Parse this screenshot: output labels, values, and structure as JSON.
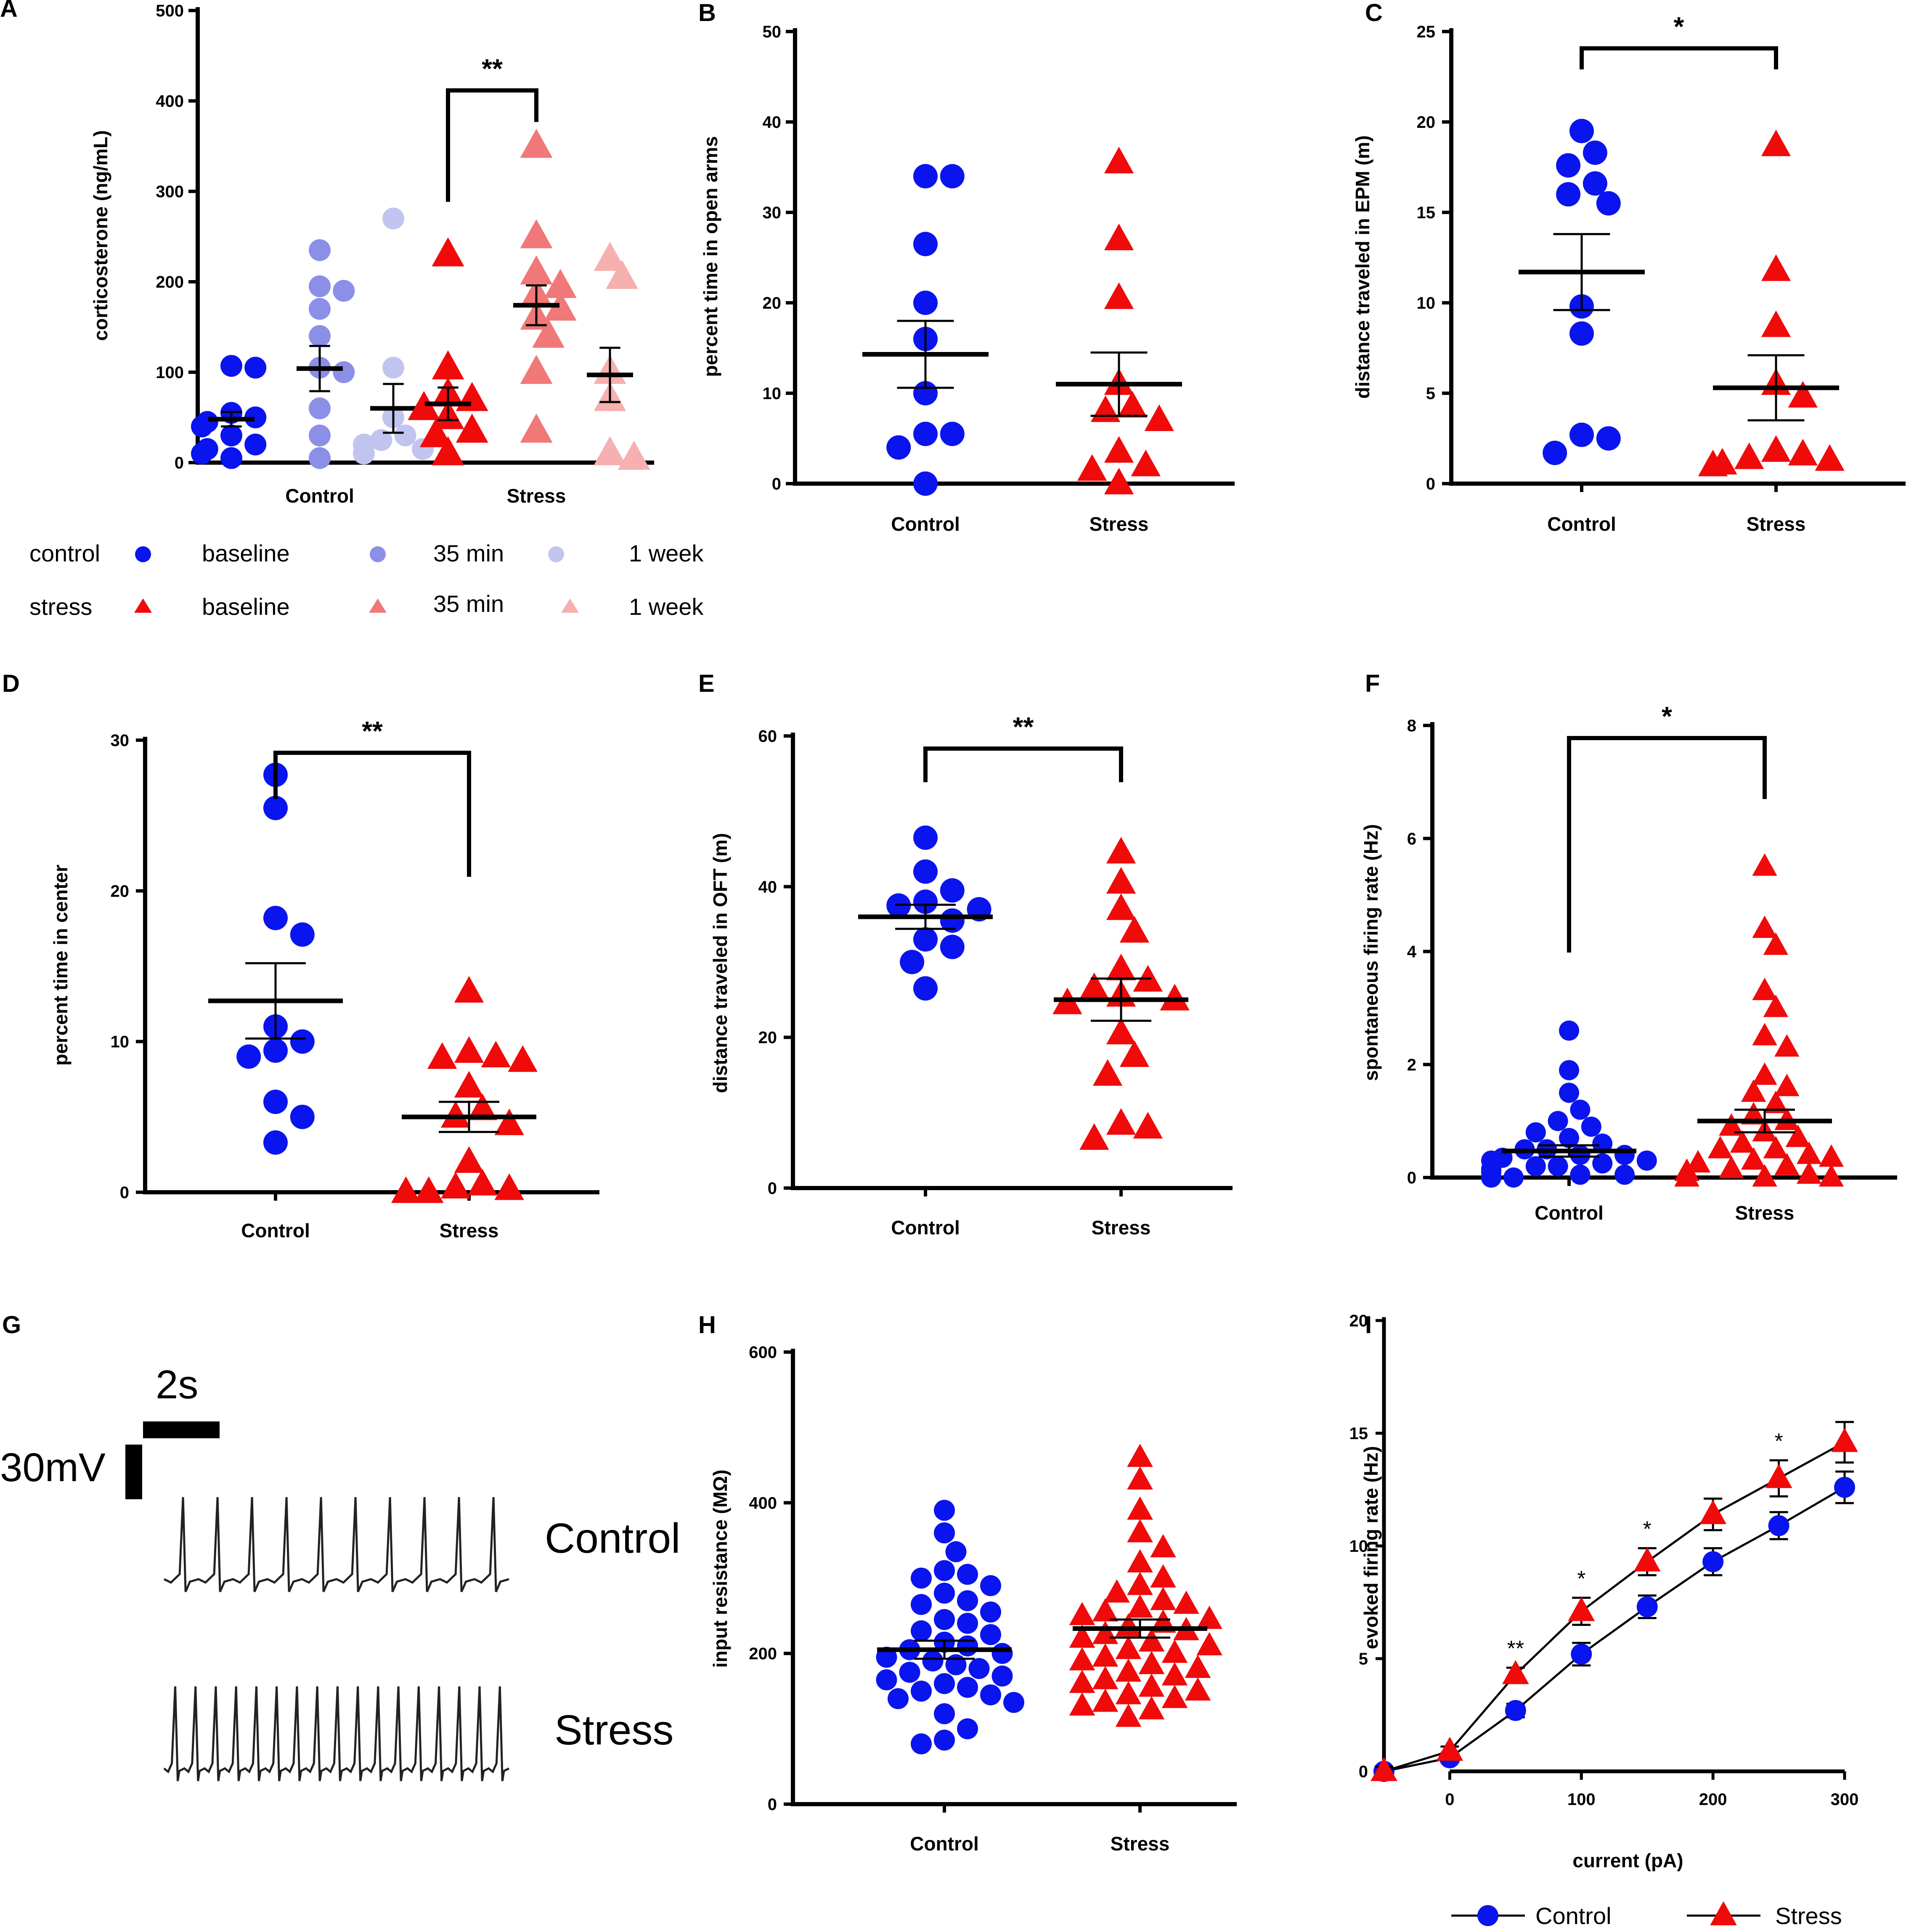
{
  "colors": {
    "control": "#0a14ee",
    "stress": "#f00a0a",
    "control_35": "#8b8fe8",
    "control_1w": "#c2c4f0",
    "stress_35": "#f07878",
    "stress_1w": "#f6b0b0",
    "axis": "#000000",
    "trace": "#222222"
  },
  "legend_a": {
    "control_label": "control",
    "stress_label": "stress",
    "baseline": "baseline",
    "min35": "35 min",
    "week1": "1 week"
  },
  "trace_panel": {
    "letter": "G",
    "time_scale": "2s",
    "voltage_scale": "30mV",
    "control_label": "Control",
    "stress_label": "Stress"
  },
  "chart_data": [
    {
      "panel": "A",
      "type": "scatter",
      "ylabel": "corticosterone (ng/mL)",
      "ylim": [
        0,
        500
      ],
      "yticks": [
        0,
        100,
        200,
        300,
        400,
        500
      ],
      "categories": [
        "Control",
        "Stress"
      ],
      "series": [
        {
          "name": "control baseline",
          "group": 0,
          "color_key": "control",
          "marker": "circle",
          "values": [
            107,
            105,
            55,
            50,
            45,
            40,
            30,
            20,
            15,
            10,
            5
          ],
          "mean": 48,
          "sem": 8
        },
        {
          "name": "control 35 min",
          "group": 0,
          "color_key": "control_35",
          "marker": "circle",
          "values": [
            235,
            195,
            190,
            170,
            140,
            105,
            100,
            60,
            30,
            5
          ],
          "mean": 104,
          "sem": 25
        },
        {
          "name": "control 1 week",
          "group": 0,
          "color_key": "control_1w",
          "marker": "circle",
          "values": [
            270,
            105,
            50,
            30,
            25,
            20,
            15,
            10
          ],
          "mean": 60,
          "sem": 27
        },
        {
          "name": "stress baseline",
          "group": 1,
          "color_key": "stress",
          "marker": "triangle",
          "values": [
            230,
            105,
            75,
            70,
            60,
            50,
            35,
            30,
            10
          ],
          "mean": 65,
          "sem": 18
        },
        {
          "name": "stress 35 min",
          "group": 1,
          "color_key": "stress_35",
          "marker": "triangle",
          "values": [
            350,
            250,
            210,
            195,
            185,
            170,
            160,
            140,
            100,
            35
          ],
          "mean": 174,
          "sem": 22
        },
        {
          "name": "stress 1 week",
          "group": 1,
          "color_key": "stress_1w",
          "marker": "triangle",
          "values": [
            225,
            205,
            100,
            70,
            10,
            5
          ],
          "mean": 97,
          "sem": 30
        }
      ],
      "significance": [
        {
          "label": "**",
          "from": 3,
          "to": 4
        }
      ]
    },
    {
      "panel": "B",
      "type": "scatter",
      "ylabel": "percent time in open arms",
      "ylim": [
        0,
        50
      ],
      "yticks": [
        0,
        10,
        20,
        30,
        40,
        50
      ],
      "categories": [
        "Control",
        "Stress"
      ],
      "series": [
        {
          "name": "Control",
          "group": 0,
          "color_key": "control",
          "marker": "circle",
          "values": [
            34,
            34,
            26.5,
            20,
            16,
            10,
            5.5,
            5.5,
            4,
            0
          ],
          "mean": 14.3,
          "sem": 3.7
        },
        {
          "name": "Stress",
          "group": 1,
          "color_key": "stress",
          "marker": "triangle",
          "values": [
            35.5,
            27,
            20.5,
            11,
            8.5,
            8,
            7,
            3.5,
            2,
            1.5,
            0
          ],
          "mean": 11,
          "sem": 3.5
        }
      ],
      "significance": []
    },
    {
      "panel": "C",
      "type": "scatter",
      "ylabel": "distance traveled in EPM (m)",
      "ylim": [
        0,
        25
      ],
      "yticks": [
        0,
        5,
        10,
        15,
        20,
        25
      ],
      "categories": [
        "Control",
        "Stress"
      ],
      "series": [
        {
          "name": "Control",
          "group": 0,
          "color_key": "control",
          "marker": "circle",
          "values": [
            19.5,
            18.3,
            17.6,
            16.6,
            16,
            15.5,
            9.8,
            8.3,
            2.7,
            2.5,
            1.7
          ],
          "mean": 11.7,
          "sem": 2.1
        },
        {
          "name": "Stress",
          "group": 1,
          "color_key": "stress",
          "marker": "triangle",
          "values": [
            18.7,
            11.8,
            8.7,
            5.5,
            4.8,
            1.8,
            1.6,
            1.4,
            1.3,
            1.1,
            1
          ],
          "mean": 5.3,
          "sem": 1.8
        }
      ],
      "significance": [
        {
          "label": "*",
          "from": 0,
          "to": 1
        }
      ]
    },
    {
      "panel": "D",
      "type": "scatter",
      "ylabel": "percent time in center",
      "ylim": [
        0,
        30
      ],
      "yticks": [
        0,
        10,
        20,
        30
      ],
      "categories": [
        "Control",
        "Stress"
      ],
      "series": [
        {
          "name": "Control",
          "group": 0,
          "color_key": "control",
          "marker": "circle",
          "values": [
            27.7,
            25.5,
            18.2,
            17.1,
            11,
            10,
            9.4,
            9,
            6,
            5,
            3.3
          ],
          "mean": 12.7,
          "sem": 2.5
        },
        {
          "name": "Stress",
          "group": 1,
          "color_key": "stress",
          "marker": "triangle",
          "values": [
            13.3,
            9.3,
            9,
            8.9,
            8.7,
            7,
            5.5,
            5,
            4.5,
            2,
            0.5,
            0.3,
            0.2,
            0,
            0
          ],
          "mean": 5,
          "sem": 1
        }
      ],
      "significance": [
        {
          "label": "**",
          "from": 0,
          "to": 1
        }
      ]
    },
    {
      "panel": "E",
      "type": "scatter",
      "ylabel": "distance traveled in OFT (m)",
      "ylim": [
        0,
        60
      ],
      "yticks": [
        0,
        20,
        40,
        60
      ],
      "categories": [
        "Control",
        "Stress"
      ],
      "series": [
        {
          "name": "Control",
          "group": 0,
          "color_key": "control",
          "marker": "circle",
          "values": [
            46.5,
            42,
            39.5,
            38,
            37.5,
            37,
            35.5,
            33,
            32,
            30,
            26.5
          ],
          "mean": 36,
          "sem": 1.6
        },
        {
          "name": "Stress",
          "group": 1,
          "color_key": "stress",
          "marker": "triangle",
          "values": [
            44.5,
            40.5,
            37,
            34,
            29,
            27.5,
            26.5,
            25.5,
            25,
            24.5,
            20.5,
            17.5,
            15,
            8.5,
            8,
            6.5
          ],
          "mean": 25,
          "sem": 2.8
        }
      ],
      "significance": [
        {
          "label": "**",
          "from": 0,
          "to": 1
        }
      ]
    },
    {
      "panel": "F",
      "type": "scatter",
      "ylabel": "spontaneous firing rate (Hz)",
      "ylim": [
        0,
        8
      ],
      "yticks": [
        0,
        2,
        4,
        6,
        8
      ],
      "categories": [
        "Control",
        "Stress"
      ],
      "series": [
        {
          "name": "Control",
          "group": 0,
          "color_key": "control",
          "marker": "circle",
          "values": [
            2.6,
            1.9,
            1.5,
            1.2,
            1.0,
            0.9,
            0.8,
            0.7,
            0.6,
            0.5,
            0.5,
            0.4,
            0.4,
            0.35,
            0.3,
            0.3,
            0.25,
            0.2,
            0.2,
            0.15,
            0.1,
            0.1,
            0.05,
            0.05,
            0,
            0,
            0,
            0,
            0,
            0,
            0,
            0,
            0,
            0
          ],
          "mean": 0.47,
          "sem": 0.1
        },
        {
          "name": "Stress",
          "group": 1,
          "color_key": "stress",
          "marker": "triangle",
          "values": [
            5.5,
            4.4,
            4.1,
            3.3,
            3.0,
            2.5,
            2.3,
            1.8,
            1.6,
            1.5,
            1.3,
            1.1,
            1.0,
            0.9,
            0.8,
            0.7,
            0.6,
            0.5,
            0.5,
            0.4,
            0.35,
            0.3,
            0.25,
            0.2,
            0.15,
            0.1,
            0.1,
            0.05,
            0,
            0,
            0,
            0,
            0,
            0,
            0,
            0,
            0,
            0,
            0,
            0
          ],
          "mean": 1.0,
          "sem": 0.2
        }
      ],
      "significance": [
        {
          "label": "*",
          "from": 0,
          "to": 1
        }
      ]
    },
    {
      "panel": "H",
      "type": "scatter",
      "ylabel": "input resistance  (MΩ)",
      "ylim": [
        0,
        600
      ],
      "yticks": [
        0,
        200,
        400,
        600
      ],
      "categories": [
        "Control",
        "Stress"
      ],
      "series": [
        {
          "name": "Control",
          "group": 0,
          "color_key": "control",
          "marker": "circle",
          "values": [
            390,
            360,
            335,
            310,
            305,
            300,
            290,
            280,
            270,
            265,
            255,
            245,
            240,
            230,
            225,
            215,
            210,
            205,
            200,
            195,
            190,
            185,
            180,
            175,
            170,
            165,
            160,
            155,
            150,
            145,
            140,
            135,
            120,
            100,
            85,
            80
          ],
          "mean": 205,
          "sem": 12
        },
        {
          "name": "Stress",
          "group": 1,
          "color_key": "stress",
          "marker": "triangle",
          "values": [
            460,
            430,
            390,
            360,
            340,
            320,
            300,
            290,
            280,
            270,
            265,
            260,
            255,
            250,
            245,
            240,
            235,
            230,
            225,
            220,
            215,
            210,
            205,
            200,
            195,
            190,
            185,
            180,
            175,
            170,
            165,
            160,
            155,
            150,
            145,
            140,
            135,
            130,
            125,
            115
          ],
          "mean": 233,
          "sem": 12
        }
      ],
      "significance": []
    },
    {
      "panel": "I",
      "type": "line",
      "xlabel": "current (pA)",
      "ylabel": "evoked firing rate (Hz)",
      "xlim": [
        -50,
        300
      ],
      "ylim": [
        0,
        20
      ],
      "xticks": [
        0,
        100,
        200,
        300
      ],
      "yticks": [
        0,
        5,
        10,
        15,
        20
      ],
      "x": [
        -50,
        0,
        50,
        100,
        150,
        200,
        250,
        300
      ],
      "series": [
        {
          "name": "Control",
          "color_key": "control",
          "marker": "circle",
          "values": [
            0,
            0.6,
            2.7,
            5.2,
            7.3,
            9.3,
            10.9,
            12.6
          ],
          "err": [
            0.2,
            0.2,
            0.3,
            0.5,
            0.5,
            0.6,
            0.6,
            0.7
          ]
        },
        {
          "name": "Stress",
          "color_key": "stress",
          "marker": "triangle",
          "values": [
            0,
            0.9,
            4.3,
            7.1,
            9.3,
            11.4,
            13.0,
            14.6
          ],
          "err": [
            0.2,
            0.2,
            0.3,
            0.6,
            0.6,
            0.7,
            0.8,
            0.9
          ]
        }
      ],
      "annotations": [
        {
          "x": 50,
          "label": "**"
        },
        {
          "x": 100,
          "label": "*"
        },
        {
          "x": 150,
          "label": "*"
        },
        {
          "x": 250,
          "label": "*"
        }
      ],
      "legend": [
        "Control",
        "Stress"
      ]
    }
  ]
}
